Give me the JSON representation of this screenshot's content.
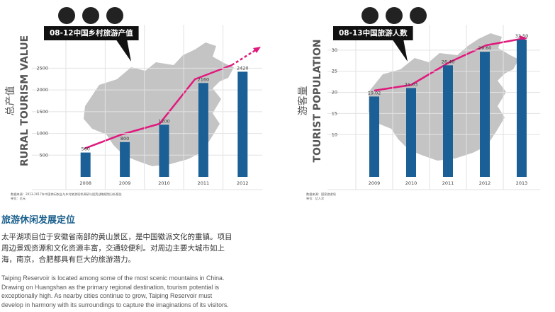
{
  "chart_data": [
    {
      "type": "bar",
      "title": "08-12中国乡村旅游产值",
      "y_label": "RURAL TOURISM VALUE",
      "y_label_cn": "总产值",
      "categories": [
        "2008",
        "2009",
        "2010",
        "2011",
        "2012"
      ],
      "values": [
        560,
        800,
        1200,
        2160,
        2420
      ],
      "color": "#1a5f96",
      "ylim": [
        0,
        3500
      ],
      "yticks": [
        500,
        1000,
        1500,
        2000,
        2500
      ],
      "grid": true,
      "source": "数据来源：2013-2017年中国休闲农业与乡村旅游现状调研与投资战略规划分析报告",
      "unit": "单位：亿元"
    },
    {
      "type": "bar",
      "title": "08-13中国旅游人数",
      "y_label": "TOURIST POPULATION",
      "y_label_cn": "游客量",
      "categories": [
        "2009",
        "2010",
        "2011",
        "2012",
        "2013"
      ],
      "values": [
        19.02,
        21.03,
        26.4,
        29.6,
        32.5
      ],
      "value_labels": [
        "19.02",
        "21.03",
        "26.40",
        "29.60",
        "32.50"
      ],
      "color": "#1a5f96",
      "ylim": [
        0,
        36
      ],
      "yticks": [
        10,
        15,
        20,
        25,
        30
      ],
      "grid": true,
      "source": "数据来源：国家旅游局",
      "unit": "单位：亿人次"
    }
  ],
  "section": {
    "heading": "旅游休闲发展定位",
    "cn_lines": [
      "太平湖项目位于安徽省南部的黄山景区，是中国徽派文化的重镇。项目",
      "周边景观资源和文化资源丰富，交通较便利。对周边主要大城市如上",
      "海，南京，合肥都具有巨大的旅游潜力。"
    ],
    "en_lines": [
      "Taiping Reservoir is located among some of the most scenic mountains in China.",
      "Drawing on Huangshan as the primary regional destination, tourism potential is",
      "exceptionally high.  As nearby cities continue to grow, Taiping Reservoir must",
      "develop in harmony with its surroundings to capture the imaginations of its visitors."
    ]
  }
}
